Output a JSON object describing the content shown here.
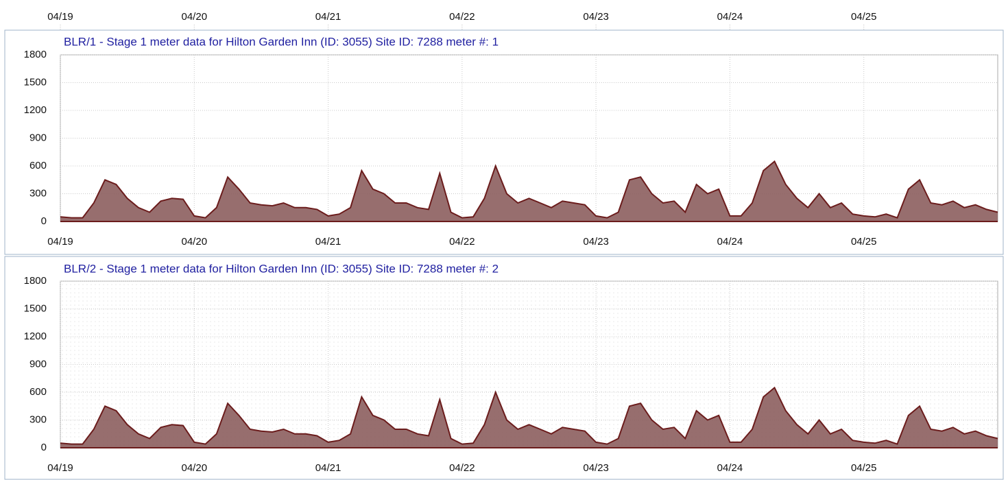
{
  "top_axis": {
    "xlim": [
      0,
      168
    ],
    "xticks": [
      {
        "value": 0,
        "label": "04/19"
      },
      {
        "value": 24,
        "label": "04/20"
      },
      {
        "value": 48,
        "label": "04/21"
      },
      {
        "value": 72,
        "label": "04/22"
      },
      {
        "value": 96,
        "label": "04/23"
      },
      {
        "value": 120,
        "label": "04/24"
      },
      {
        "value": 144,
        "label": "04/25"
      }
    ]
  },
  "chart_data": [
    {
      "type": "area",
      "title": "BLR/1 - Stage 1 meter data for Hilton Garden Inn (ID: 3055) Site ID: 7288 meter #: 1",
      "x": [
        0,
        2,
        4,
        6,
        8,
        10,
        12,
        14,
        16,
        18,
        20,
        22,
        24,
        26,
        28,
        30,
        32,
        34,
        36,
        38,
        40,
        42,
        44,
        46,
        48,
        50,
        52,
        54,
        56,
        58,
        60,
        62,
        64,
        66,
        68,
        70,
        72,
        74,
        76,
        78,
        80,
        82,
        84,
        86,
        88,
        90,
        92,
        94,
        96,
        98,
        100,
        102,
        104,
        106,
        108,
        110,
        112,
        114,
        116,
        118,
        120,
        122,
        124,
        126,
        128,
        130,
        132,
        134,
        136,
        138,
        140,
        142,
        144,
        146,
        148,
        150,
        152,
        154,
        156,
        158,
        160,
        162,
        164,
        166,
        168
      ],
      "series": [
        {
          "color": "#6b1c1c",
          "fill": "#8c5e5e",
          "values": [
            50,
            40,
            40,
            200,
            450,
            400,
            250,
            150,
            100,
            220,
            250,
            240,
            60,
            40,
            150,
            480,
            350,
            200,
            180,
            170,
            200,
            150,
            150,
            130,
            60,
            80,
            150,
            550,
            350,
            300,
            200,
            200,
            150,
            130,
            520,
            100,
            40,
            50,
            250,
            600,
            300,
            200,
            250,
            200,
            150,
            220,
            200,
            180,
            60,
            40,
            100,
            450,
            480,
            300,
            200,
            220,
            100,
            400,
            300,
            350,
            60,
            60,
            200,
            550,
            650,
            400,
            250,
            150,
            300,
            150,
            200,
            80,
            60,
            50,
            80,
            40,
            350,
            450,
            200,
            180,
            220,
            150,
            180,
            130,
            100
          ]
        }
      ],
      "xlim": [
        0,
        168
      ],
      "ylim": [
        0,
        1800
      ],
      "yticks": [
        0,
        300,
        600,
        900,
        1200,
        1500,
        1800
      ],
      "xticks": [
        {
          "value": 0,
          "label": "04/19"
        },
        {
          "value": 24,
          "label": "04/20"
        },
        {
          "value": 48,
          "label": "04/21"
        },
        {
          "value": 72,
          "label": "04/22"
        },
        {
          "value": 96,
          "label": "04/23"
        },
        {
          "value": 120,
          "label": "04/24"
        },
        {
          "value": 144,
          "label": "04/25"
        }
      ],
      "grid": true,
      "minor_grid": false
    },
    {
      "type": "area",
      "title": "BLR/2 - Stage 1 meter data for Hilton Garden Inn (ID: 3055) Site ID: 7288 meter #: 2",
      "x": [
        0,
        2,
        4,
        6,
        8,
        10,
        12,
        14,
        16,
        18,
        20,
        22,
        24,
        26,
        28,
        30,
        32,
        34,
        36,
        38,
        40,
        42,
        44,
        46,
        48,
        50,
        52,
        54,
        56,
        58,
        60,
        62,
        64,
        66,
        68,
        70,
        72,
        74,
        76,
        78,
        80,
        82,
        84,
        86,
        88,
        90,
        92,
        94,
        96,
        98,
        100,
        102,
        104,
        106,
        108,
        110,
        112,
        114,
        116,
        118,
        120,
        122,
        124,
        126,
        128,
        130,
        132,
        134,
        136,
        138,
        140,
        142,
        144,
        146,
        148,
        150,
        152,
        154,
        156,
        158,
        160,
        162,
        164,
        166,
        168
      ],
      "series": [
        {
          "color": "#6b1c1c",
          "fill": "#8c5e5e",
          "values": [
            50,
            40,
            40,
            200,
            450,
            400,
            250,
            150,
            100,
            220,
            250,
            240,
            60,
            40,
            150,
            480,
            350,
            200,
            180,
            170,
            200,
            150,
            150,
            130,
            60,
            80,
            150,
            550,
            350,
            300,
            200,
            200,
            150,
            130,
            520,
            100,
            40,
            50,
            250,
            600,
            300,
            200,
            250,
            200,
            150,
            220,
            200,
            180,
            60,
            40,
            100,
            450,
            480,
            300,
            200,
            220,
            100,
            400,
            300,
            350,
            60,
            60,
            200,
            550,
            650,
            400,
            250,
            150,
            300,
            150,
            200,
            80,
            60,
            50,
            80,
            40,
            350,
            450,
            200,
            180,
            220,
            150,
            180,
            130,
            100
          ]
        }
      ],
      "xlim": [
        0,
        168
      ],
      "ylim": [
        0,
        1800
      ],
      "yticks": [
        0,
        300,
        600,
        900,
        1200,
        1500,
        1800
      ],
      "xticks": [
        {
          "value": 0,
          "label": "04/19"
        },
        {
          "value": 24,
          "label": "04/20"
        },
        {
          "value": 48,
          "label": "04/21"
        },
        {
          "value": 72,
          "label": "04/22"
        },
        {
          "value": 96,
          "label": "04/23"
        },
        {
          "value": 120,
          "label": "04/24"
        },
        {
          "value": 144,
          "label": "04/25"
        }
      ],
      "grid": true,
      "minor_grid": true
    }
  ]
}
